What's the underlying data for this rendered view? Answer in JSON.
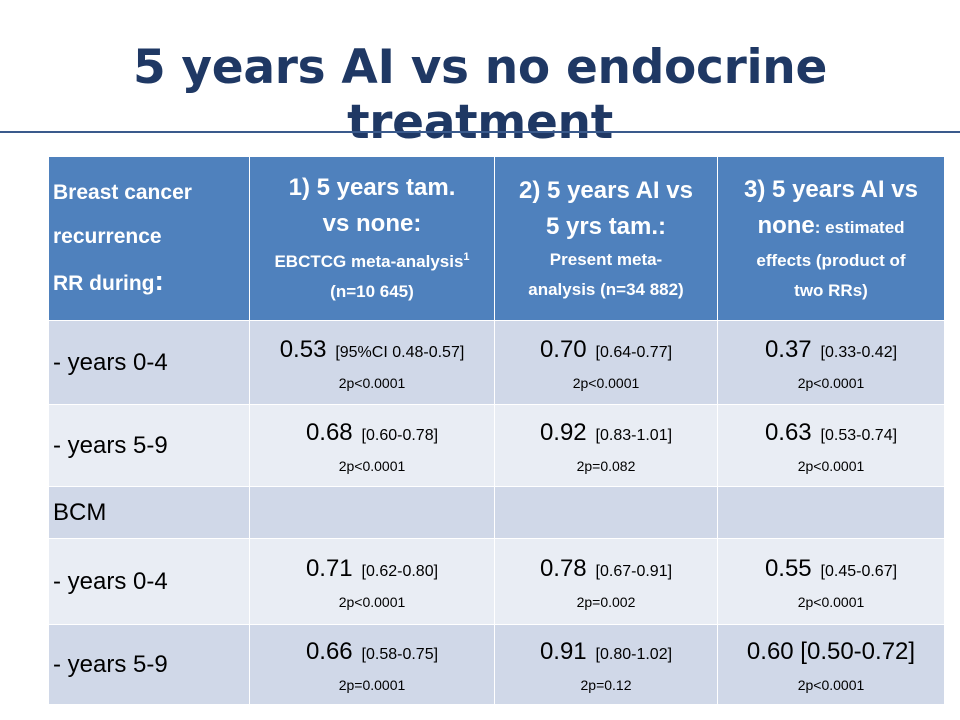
{
  "title": "5 years AI vs no endocrine treatment",
  "header": {
    "col0": {
      "line1": "Breast cancer",
      "line2": "recurrence",
      "line3": "RR during",
      "colon": ":"
    },
    "col1": {
      "main": "1)   5 years tam.",
      "main2": "vs none",
      "colon": ":",
      "sub1": "EBCTCG meta-analysis",
      "sup": "1",
      "sub2": "(n=10 645)"
    },
    "col2": {
      "main": "2) 5 years AI vs",
      "main2": "5 yrs tam.:",
      "sub1": "Present meta-",
      "sub2": "analysis (n=34 882)"
    },
    "col3": {
      "main": "3) 5 years AI vs",
      "main2": "none",
      "small": ": estimated",
      "sub1": "effects (product of",
      "sub2": "two RRs)"
    }
  },
  "rows": [
    {
      "label": "- years   0-4",
      "cells": [
        {
          "rr": "0.53",
          "ci": "[95%CI 0.48-0.57]",
          "p": "2p<0.0001"
        },
        {
          "rr": "0.70",
          "ci": "[0.64-0.77]",
          "p": "2p<0.0001"
        },
        {
          "rr": "0.37",
          "ci": "[0.33-0.42]",
          "p": "2p<0.0001"
        }
      ]
    },
    {
      "label": "- years   5-9",
      "cells": [
        {
          "rr": "0.68",
          "ci": "[0.60-0.78]",
          "p": "2p<0.0001"
        },
        {
          "rr": "0.92",
          "ci": "[0.83-1.01]",
          "p": "2p=0.082"
        },
        {
          "rr": "0.63",
          "ci": "[0.53-0.74]",
          "p": "2p<0.0001"
        }
      ]
    },
    {
      "label": "BCM",
      "cells": []
    },
    {
      "label": "- years   0-4",
      "cells": [
        {
          "rr": "0.71",
          "ci": "[0.62-0.80]",
          "p": "2p<0.0001"
        },
        {
          "rr": "0.78",
          "ci": "[0.67-0.91]",
          "p": "2p=0.002"
        },
        {
          "rr": "0.55",
          "ci": "[0.45-0.67]",
          "p": "2p<0.0001"
        }
      ]
    },
    {
      "label": "- years   5-9",
      "cells": [
        {
          "rr": "0.66",
          "ci": "[0.58-0.75]",
          "p": "2p=0.0001"
        },
        {
          "rr": "0.91",
          "ci": "[0.80-1.02]",
          "p": "2p=0.12"
        },
        {
          "rr": "0.60  [0.50-0.72]",
          "ci": "",
          "p": "2p<0.0001"
        }
      ]
    }
  ],
  "colors": {
    "title": "#1f3864",
    "header_bg": "#4f81bd",
    "row_dark": "#d0d8e8",
    "row_light": "#e9edf4"
  }
}
